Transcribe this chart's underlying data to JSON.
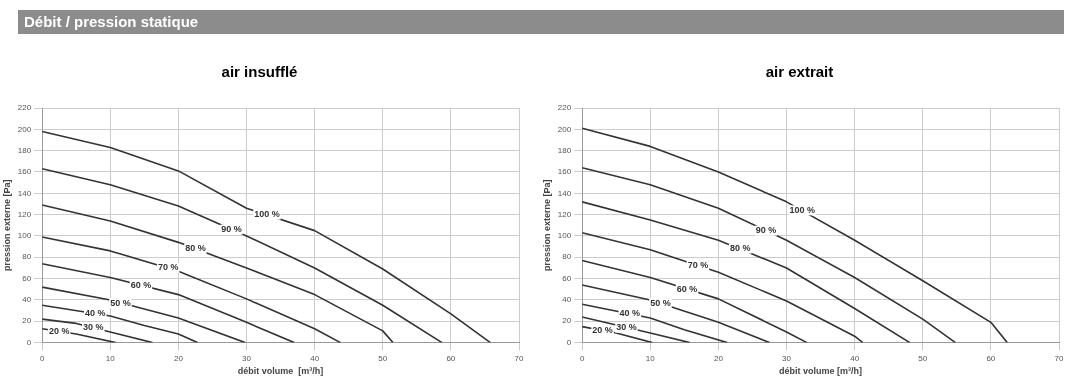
{
  "chart_data": [
    {
      "type": "line",
      "title": "air insufflé",
      "xlabel": "débit volume  [m³/h]",
      "ylabel": "pression externe [Pa]",
      "xlim": [
        0,
        70
      ],
      "ylim": [
        0,
        220
      ],
      "xticks": [
        0,
        10,
        20,
        30,
        40,
        50,
        60,
        70
      ],
      "yticks": [
        0,
        20,
        40,
        60,
        80,
        100,
        120,
        140,
        160,
        180,
        200,
        220
      ],
      "grid": true,
      "legend": false,
      "marker": "none",
      "line_style": "solid",
      "annotations": [
        "Débit / pression statique",
        {
          "text": "100 %",
          "x": 33,
          "y": 120
        },
        {
          "text": "90 %",
          "x": 27.8,
          "y": 106
        },
        {
          "text": "80 %",
          "x": 22.5,
          "y": 88
        },
        {
          "text": "70 %",
          "x": 18.5,
          "y": 70
        },
        {
          "text": "60 %",
          "x": 14.5,
          "y": 54
        },
        {
          "text": "50 %",
          "x": 11.5,
          "y": 37
        },
        {
          "text": "40 %",
          "x": 7.8,
          "y": 27
        },
        {
          "text": "30 %",
          "x": 7.5,
          "y": 14
        },
        {
          "text": "20 %",
          "x": 2.5,
          "y": 10.5
        }
      ],
      "series": [
        {
          "color": "#333333",
          "x": [
            0,
            10,
            20,
            30,
            40,
            50,
            60,
            65.8
          ],
          "values": [
            198,
            183,
            161,
            126,
            105,
            69,
            27,
            0
          ]
        },
        {
          "color": "#333333",
          "x": [
            0,
            10,
            20,
            30,
            40,
            50,
            58.7
          ],
          "values": [
            163,
            148,
            128,
            100,
            70,
            35,
            0
          ]
        },
        {
          "color": "#333333",
          "x": [
            0,
            10,
            20,
            30,
            40,
            50,
            51.5
          ],
          "values": [
            129,
            114,
            94,
            70,
            45,
            11,
            0
          ]
        },
        {
          "color": "#333333",
          "x": [
            0,
            10,
            20,
            30,
            40,
            43.8
          ],
          "values": [
            99,
            86,
            67,
            41,
            13,
            0
          ]
        },
        {
          "color": "#333333",
          "x": [
            0,
            10,
            20,
            30,
            37
          ],
          "values": [
            74,
            61,
            45,
            19,
            0
          ]
        },
        {
          "color": "#333333",
          "x": [
            0,
            10,
            20,
            29.8
          ],
          "values": [
            52,
            40,
            23,
            0
          ]
        },
        {
          "color": "#333333",
          "x": [
            0,
            10,
            15,
            20,
            22.8
          ],
          "values": [
            35,
            25,
            16,
            8,
            0
          ]
        },
        {
          "color": "#333333",
          "x": [
            0,
            5,
            10,
            16.2
          ],
          "values": [
            22,
            18,
            10,
            0
          ]
        },
        {
          "color": "#333333",
          "x": [
            0,
            5,
            10.8
          ],
          "values": [
            13,
            8,
            0
          ]
        }
      ]
    },
    {
      "type": "line",
      "title": "air extrait",
      "xlabel": "débit volume [m³/h]",
      "ylabel": "pression externe [Pa]",
      "xlim": [
        0,
        70
      ],
      "ylim": [
        0,
        220
      ],
      "xticks": [
        0,
        10,
        20,
        30,
        40,
        50,
        60,
        70
      ],
      "yticks": [
        0,
        20,
        40,
        60,
        80,
        100,
        120,
        140,
        160,
        180,
        200,
        220
      ],
      "grid": true,
      "legend": false,
      "marker": "none",
      "line_style": "solid",
      "annotations": [
        {
          "text": "100 %",
          "x": 32.3,
          "y": 124
        },
        {
          "text": "90 %",
          "x": 27,
          "y": 105
        },
        {
          "text": "80 %",
          "x": 23.2,
          "y": 88
        },
        {
          "text": "70 %",
          "x": 17,
          "y": 72
        },
        {
          "text": "60 %",
          "x": 15.4,
          "y": 50
        },
        {
          "text": "50 %",
          "x": 11.5,
          "y": 37
        },
        {
          "text": "40 %",
          "x": 7,
          "y": 27
        },
        {
          "text": "30 %",
          "x": 6.5,
          "y": 14
        },
        {
          "text": "20 %",
          "x": 3,
          "y": 11
        }
      ],
      "series": [
        {
          "color": "#333333",
          "x": [
            0,
            10,
            20,
            30,
            40,
            50,
            60,
            62.4
          ],
          "values": [
            201,
            184,
            160,
            132,
            96,
            58,
            19,
            0
          ]
        },
        {
          "color": "#333333",
          "x": [
            0,
            10,
            20,
            30,
            40,
            50,
            54.8
          ],
          "values": [
            164,
            148,
            126,
            96,
            61,
            22,
            0
          ]
        },
        {
          "color": "#333333",
          "x": [
            0,
            10,
            20,
            30,
            40,
            48.1
          ],
          "values": [
            132,
            115,
            96,
            70,
            32,
            0
          ]
        },
        {
          "color": "#333333",
          "x": [
            0,
            10,
            20,
            30,
            40,
            41.2
          ],
          "values": [
            103,
            87,
            66,
            39,
            6,
            0
          ]
        },
        {
          "color": "#333333",
          "x": [
            0,
            10,
            20,
            30,
            33
          ],
          "values": [
            77,
            61,
            41,
            10,
            0
          ]
        },
        {
          "color": "#333333",
          "x": [
            0,
            10,
            20,
            27.5
          ],
          "values": [
            54,
            40,
            19,
            0
          ]
        },
        {
          "color": "#333333",
          "x": [
            0,
            10,
            15,
            21.3
          ],
          "values": [
            36,
            23,
            12,
            0
          ]
        },
        {
          "color": "#333333",
          "x": [
            0,
            10,
            15.8
          ],
          "values": [
            24,
            9,
            0
          ]
        },
        {
          "color": "#333333",
          "x": [
            0,
            5,
            10.3
          ],
          "values": [
            15,
            9,
            0
          ]
        }
      ]
    }
  ]
}
